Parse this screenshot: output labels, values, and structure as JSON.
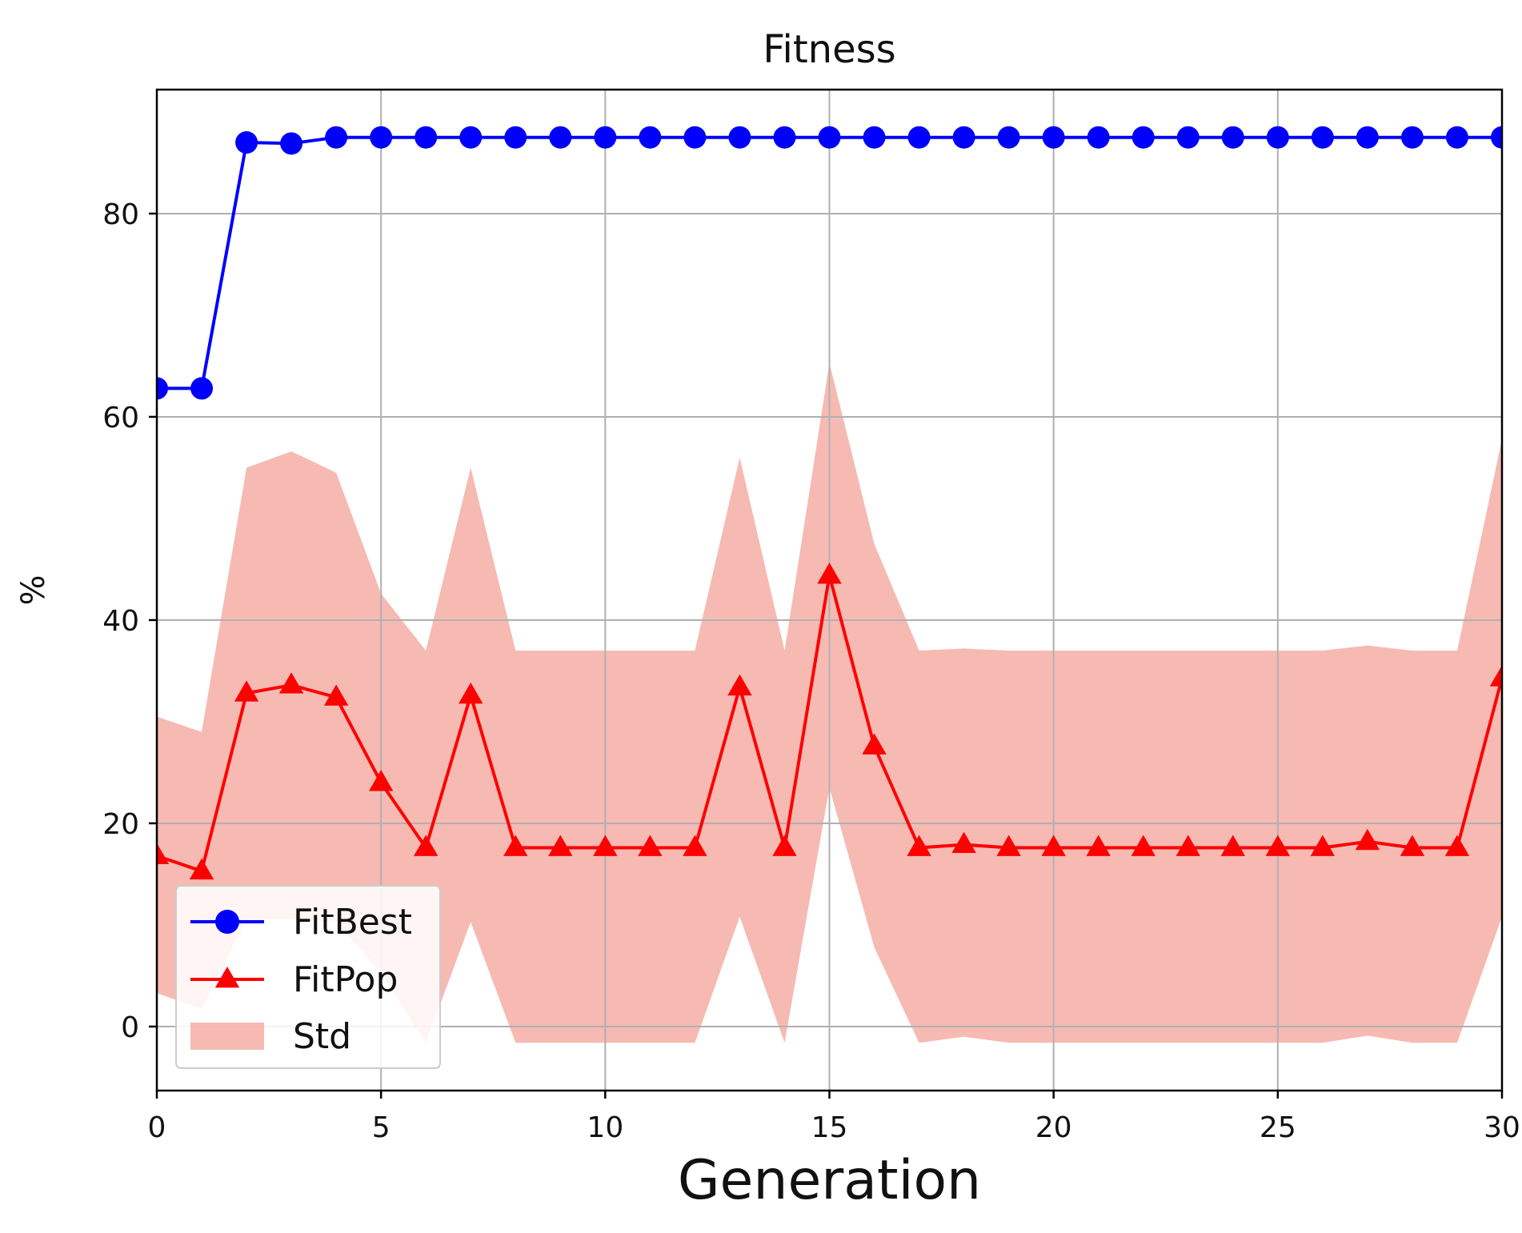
{
  "chart_data": {
    "type": "line",
    "title": "Fitness",
    "xlabel": "Generation",
    "ylabel": "%",
    "xlim": [
      0,
      30
    ],
    "ylim": [
      -6.3,
      92.2
    ],
    "xticks": [
      0,
      5,
      10,
      15,
      20,
      25,
      30
    ],
    "yticks": [
      0,
      20,
      40,
      60,
      80
    ],
    "grid": true,
    "legend_position": "lower-left",
    "x": [
      0,
      1,
      2,
      3,
      4,
      5,
      6,
      7,
      8,
      9,
      10,
      11,
      12,
      13,
      14,
      15,
      16,
      17,
      18,
      19,
      20,
      21,
      22,
      23,
      24,
      25,
      26,
      27,
      28,
      29,
      30
    ],
    "series": [
      {
        "name": "FitBest",
        "color": "#0000ff",
        "marker": "circle",
        "values": [
          62.8,
          62.8,
          87.0,
          86.9,
          87.5,
          87.5,
          87.5,
          87.5,
          87.5,
          87.5,
          87.5,
          87.5,
          87.5,
          87.5,
          87.5,
          87.5,
          87.5,
          87.5,
          87.5,
          87.5,
          87.5,
          87.5,
          87.5,
          87.5,
          87.5,
          87.5,
          87.5,
          87.5,
          87.5,
          87.5,
          87.5
        ]
      },
      {
        "name": "FitPop",
        "color": "#ff0000",
        "marker": "triangle",
        "values": [
          16.8,
          15.3,
          32.8,
          33.6,
          32.4,
          24.0,
          17.6,
          32.6,
          17.6,
          17.6,
          17.6,
          17.6,
          17.6,
          33.4,
          17.6,
          44.4,
          27.6,
          17.6,
          17.9,
          17.6,
          17.6,
          17.6,
          17.6,
          17.6,
          17.6,
          17.6,
          17.6,
          18.2,
          17.6,
          17.6,
          34.3
        ]
      }
    ],
    "band": {
      "name": "Std",
      "color": "#f4a9a0",
      "lower": [
        3.3,
        1.7,
        10.6,
        10.6,
        10.3,
        5.3,
        -1.6,
        10.3,
        -1.6,
        -1.6,
        -1.6,
        -1.6,
        -1.6,
        10.8,
        -1.6,
        23.5,
        7.8,
        -1.6,
        -1.0,
        -1.6,
        -1.6,
        -1.6,
        -1.6,
        -1.6,
        -1.6,
        -1.6,
        -1.6,
        -0.9,
        -1.6,
        -1.6,
        10.8
      ],
      "upper": [
        30.5,
        29.0,
        55.0,
        56.6,
        54.5,
        42.6,
        37.0,
        55.0,
        37.0,
        37.0,
        37.0,
        37.0,
        37.0,
        56.0,
        37.0,
        65.3,
        47.5,
        37.0,
        37.2,
        37.0,
        37.0,
        37.0,
        37.0,
        37.0,
        37.0,
        37.0,
        37.0,
        37.5,
        37.0,
        37.0,
        57.8
      ]
    }
  }
}
